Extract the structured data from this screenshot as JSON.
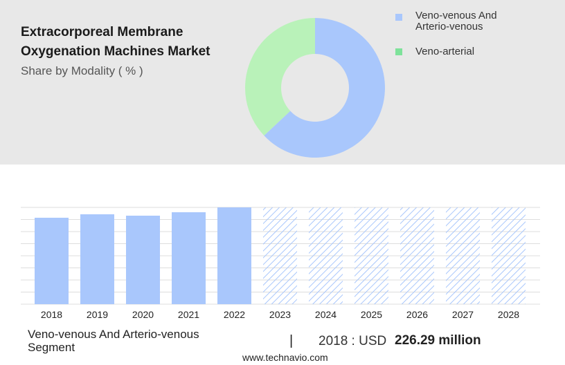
{
  "header": {
    "title": "Extracorporeal Membrane Oxygenation Machines Market",
    "subtitle": "Share by Modality ( % )"
  },
  "chart_data": [
    {
      "type": "donut",
      "categories": [
        "Veno-venous And Arterio-venous",
        "Veno-arterial"
      ],
      "values": [
        63,
        37
      ],
      "colors": [
        "#a9c7fc",
        "#b9f2b9"
      ],
      "legend_colors": [
        "#a9c7fc",
        "#7ee29a"
      ]
    },
    {
      "type": "bar",
      "categories": [
        "2018",
        "2019",
        "2020",
        "2021",
        "2022",
        "2023",
        "2024",
        "2025",
        "2026",
        "2027",
        "2028"
      ],
      "values": [
        226.29,
        235.3,
        231.7,
        240.7,
        253.4,
        null,
        null,
        null,
        null,
        null,
        null
      ],
      "color": "#a9c7fc",
      "ylim": [
        0,
        253.4
      ]
    }
  ],
  "footer": {
    "segment": "Veno-venous And Arterio-venous Segment",
    "separator": "|",
    "year_label": "2018 : USD",
    "value_label": "226.29 million",
    "source": "www.technavio.com"
  }
}
